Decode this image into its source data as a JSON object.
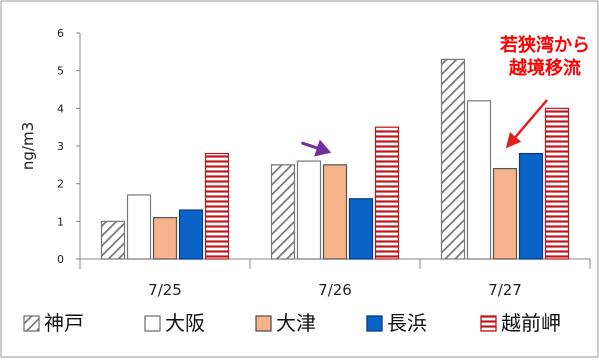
{
  "chart_data": {
    "type": "bar",
    "categories": [
      "7/25",
      "7/26",
      "7/27"
    ],
    "series": [
      {
        "name": "神戸",
        "values": [
          1.0,
          2.5,
          5.3
        ],
        "fill": "#ffffff",
        "stroke": "#777777",
        "pattern": "hatch-diagonal"
      },
      {
        "name": "大阪",
        "values": [
          1.7,
          2.6,
          4.2
        ],
        "fill": "#ffffff",
        "stroke": "#777777",
        "pattern": "none"
      },
      {
        "name": "大津",
        "values": [
          1.1,
          2.5,
          2.4
        ],
        "fill": "#f6b38a",
        "stroke": "#555555",
        "pattern": "none"
      },
      {
        "name": "長浜",
        "values": [
          1.3,
          1.6,
          2.8
        ],
        "fill": "#0a63c7",
        "stroke": "#0a3a80",
        "pattern": "none"
      },
      {
        "name": "越前岬",
        "values": [
          2.8,
          3.5,
          4.0
        ],
        "fill": "#ffffff",
        "stroke": "#c0161c",
        "pattern": "hatch-horizontal-red"
      }
    ],
    "ylabel": "ng/m3",
    "ylim": [
      0,
      6
    ],
    "yticks": [
      "0",
      "1",
      "2",
      "3",
      "4",
      "5",
      "6"
    ],
    "grid": false,
    "legend_placement": "bottom",
    "annotations": [
      {
        "text_lines": [
          "若狭湾から",
          "越境移流"
        ],
        "color": "#ff0000",
        "arrow_color": "#e02020",
        "target": "7/27 大津"
      },
      {
        "text_lines": [],
        "arrow_color": "#7030a0",
        "target": "7/26 大津"
      }
    ]
  }
}
